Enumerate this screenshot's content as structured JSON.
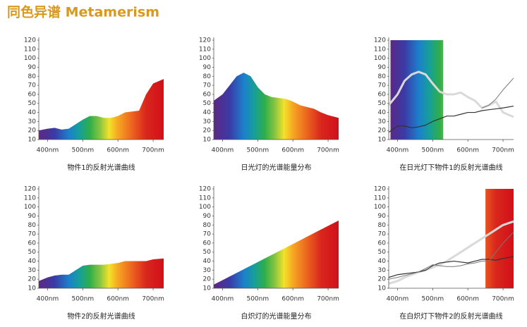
{
  "title": "同色异谱 Metamerism",
  "chart_data": [
    {
      "type": "area",
      "title": "物件1的反射光谱曲线",
      "x": [
        375,
        400,
        420,
        440,
        460,
        480,
        500,
        520,
        540,
        560,
        580,
        600,
        620,
        640,
        660,
        680,
        700,
        730
      ],
      "values": [
        20,
        22,
        23,
        21,
        22,
        27,
        32,
        36,
        36,
        34,
        34,
        36,
        40,
        41,
        42,
        60,
        72,
        77
      ],
      "xlim": [
        375,
        730
      ],
      "xticks": [
        {
          "value": 400,
          "label": "400nm"
        },
        {
          "value": 500,
          "label": "500nm"
        },
        {
          "value": 600,
          "label": "600nm"
        },
        {
          "value": 700,
          "label": "700nm"
        }
      ],
      "ylim": [
        10,
        120
      ],
      "yticks": [
        10,
        20,
        30,
        40,
        50,
        60,
        70,
        80,
        90,
        100,
        110,
        120
      ]
    },
    {
      "type": "area",
      "title": "日光灯的光谱能量分布",
      "x": [
        375,
        400,
        420,
        440,
        460,
        480,
        500,
        520,
        540,
        560,
        580,
        600,
        620,
        640,
        660,
        680,
        700,
        730
      ],
      "values": [
        53,
        60,
        70,
        80,
        84,
        80,
        68,
        60,
        57,
        56,
        55,
        52,
        48,
        46,
        44,
        40,
        37,
        34
      ],
      "xlim": [
        375,
        730
      ],
      "xticks": [
        {
          "value": 400,
          "label": "400nm"
        },
        {
          "value": 500,
          "label": "500nm"
        },
        {
          "value": 600,
          "label": "600nm"
        },
        {
          "value": 700,
          "label": "700nm"
        }
      ],
      "ylim": [
        10,
        120
      ],
      "yticks": [
        10,
        20,
        30,
        40,
        50,
        60,
        70,
        80,
        90,
        100,
        110,
        120
      ]
    },
    {
      "type": "line",
      "title": "在日光灯下物件1的反射光谱曲线",
      "spectrum_band": [
        380,
        530
      ],
      "x": [
        375,
        400,
        420,
        440,
        460,
        480,
        500,
        520,
        540,
        560,
        580,
        600,
        620,
        640,
        660,
        680,
        700,
        730
      ],
      "series": [
        {
          "color": "#d9d9d9",
          "line_width": 3,
          "values": [
            48,
            60,
            75,
            82,
            85,
            82,
            72,
            63,
            60,
            60,
            62,
            57,
            53,
            45,
            48,
            52,
            40,
            35
          ]
        },
        {
          "color": "#333333",
          "line_width": 1.2,
          "values": [
            18,
            25,
            25,
            23,
            24,
            26,
            30,
            33,
            36,
            36,
            38,
            40,
            40,
            42,
            43,
            44,
            45,
            47
          ]
        },
        {
          "color": "#777777",
          "line_width": 1,
          "values": [
            null,
            null,
            null,
            null,
            null,
            null,
            null,
            null,
            null,
            null,
            null,
            null,
            null,
            45,
            48,
            55,
            65,
            78
          ]
        }
      ],
      "xlim": [
        375,
        730
      ],
      "xticks": [
        {
          "value": 400,
          "label": "400nm"
        },
        {
          "value": 500,
          "label": "500nm"
        },
        {
          "value": 600,
          "label": "600nm"
        },
        {
          "value": 700,
          "label": "700nm"
        }
      ],
      "ylim": [
        10,
        120
      ],
      "yticks": [
        10,
        20,
        30,
        40,
        50,
        60,
        70,
        80,
        90,
        100,
        110,
        120
      ]
    },
    {
      "type": "area",
      "title": "物件2的反射光谱曲线",
      "x": [
        375,
        400,
        420,
        440,
        460,
        480,
        500,
        520,
        540,
        560,
        580,
        600,
        620,
        640,
        660,
        680,
        700,
        730
      ],
      "values": [
        18,
        22,
        24,
        25,
        25,
        30,
        35,
        36,
        36,
        36,
        37,
        38,
        40,
        40,
        40,
        40,
        42,
        43
      ],
      "xlim": [
        375,
        730
      ],
      "xticks": [
        {
          "value": 400,
          "label": "400nm"
        },
        {
          "value": 500,
          "label": "500nm"
        },
        {
          "value": 600,
          "label": "600nm"
        },
        {
          "value": 700,
          "label": "700nm"
        }
      ],
      "ylim": [
        10,
        120
      ],
      "yticks": [
        10,
        20,
        30,
        40,
        50,
        60,
        70,
        80,
        90,
        100,
        110,
        120
      ]
    },
    {
      "type": "area",
      "title": "白炽灯的光谱能量分布",
      "x": [
        375,
        400,
        420,
        440,
        460,
        480,
        500,
        520,
        540,
        560,
        580,
        600,
        620,
        640,
        660,
        680,
        700,
        730
      ],
      "values": [
        14,
        19,
        23,
        27,
        31,
        35,
        39,
        43,
        47,
        51,
        55,
        59,
        63,
        67,
        71,
        75,
        79,
        85
      ],
      "xlim": [
        375,
        730
      ],
      "xticks": [
        {
          "value": 400,
          "label": "400nm"
        },
        {
          "value": 500,
          "label": "500nm"
        },
        {
          "value": 600,
          "label": "600nm"
        },
        {
          "value": 700,
          "label": "700nm"
        }
      ],
      "ylim": [
        10,
        120
      ],
      "yticks": [
        10,
        20,
        30,
        40,
        50,
        60,
        70,
        80,
        90,
        100,
        110,
        120
      ]
    },
    {
      "type": "line",
      "title": "在白炽灯下物件2的反射光谱曲线",
      "spectrum_band": [
        650,
        730
      ],
      "x": [
        375,
        400,
        420,
        440,
        460,
        480,
        500,
        520,
        540,
        560,
        580,
        600,
        620,
        640,
        660,
        680,
        700,
        730
      ],
      "series": [
        {
          "color": "#d9d9d9",
          "line_width": 3,
          "values": [
            15,
            18,
            22,
            25,
            28,
            30,
            33,
            36,
            40,
            45,
            50,
            55,
            60,
            65,
            70,
            75,
            80,
            84
          ]
        },
        {
          "color": "#333333",
          "line_width": 1.2,
          "values": [
            22,
            25,
            26,
            27,
            28,
            30,
            35,
            38,
            39,
            40,
            39,
            38,
            40,
            42,
            42,
            41,
            43,
            45
          ]
        },
        {
          "color": "#777777",
          "line_width": 1,
          "values": [
            20,
            22,
            24,
            26,
            28,
            32,
            36,
            35,
            34,
            34,
            35,
            37,
            38,
            40,
            40,
            50,
            60,
            72
          ]
        }
      ],
      "xlim": [
        375,
        730
      ],
      "xticks": [
        {
          "value": 400,
          "label": "400nm"
        },
        {
          "value": 500,
          "label": "500nm"
        },
        {
          "value": 600,
          "label": "600nm"
        },
        {
          "value": 700,
          "label": "700nm"
        }
      ],
      "ylim": [
        10,
        120
      ],
      "yticks": [
        10,
        20,
        30,
        40,
        50,
        60,
        70,
        80,
        90,
        100,
        110,
        120
      ]
    }
  ]
}
